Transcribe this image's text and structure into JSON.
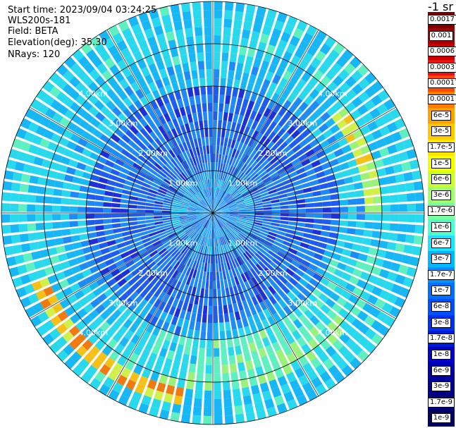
{
  "header": {
    "start_time": "Start time: 2023/09/04 03:24:25",
    "device": "WLS200s-181",
    "field": "Field: BETA",
    "elevation": "Elevation(deg): 35.30",
    "nrays": "NRays: 120"
  },
  "chart_data": {
    "type": "polar-ppi",
    "unit_label": "-1 sr",
    "n_rays": 120,
    "range_rings_km": [
      1,
      2,
      3,
      4
    ],
    "ring_labels": [
      "1.00km",
      "2.00km",
      "3.00km",
      "4.00km"
    ],
    "spokes_deg": [
      0,
      30,
      60,
      90,
      120,
      150,
      180,
      210,
      240,
      270,
      300,
      330
    ],
    "colorbar": {
      "labels": [
        "0.0017",
        "0.001",
        "0.0006",
        "0.0003",
        "0.00017",
        "0.0001",
        "6e-5",
        "3e-5",
        "1.7e-5",
        "1e-5",
        "6e-6",
        "3e-6",
        "1.7e-6",
        "1e-6",
        "6e-7",
        "3e-7",
        "1.7e-7",
        "1e-7",
        "6e-8",
        "3e-8",
        "1.7e-8",
        "1e-8",
        "6e-9",
        "3e-9",
        "1.7e-9",
        "1e-9"
      ],
      "colors": [
        "#7a0000",
        "#a00000",
        "#c80000",
        "#f01010",
        "#ff4a00",
        "#ff7a00",
        "#ffa200",
        "#ffc800",
        "#ffe600",
        "#f2ff00",
        "#c8ff30",
        "#a0ff6a",
        "#7affa0",
        "#50ffd0",
        "#20e0ff",
        "#00b8ff",
        "#0090ff",
        "#0070ff",
        "#0050ff",
        "#0030f0",
        "#0018d8",
        "#0000c8",
        "#0000a8",
        "#000090",
        "#000078",
        "#000060"
      ]
    }
  }
}
